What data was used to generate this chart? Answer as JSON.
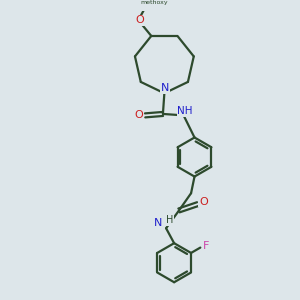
{
  "bg_color": "#dde6ea",
  "bond_color": "#2d4a2d",
  "n_color": "#2020cc",
  "o_color": "#cc2020",
  "f_color": "#cc44aa",
  "line_width": 1.6,
  "fig_width": 3.0,
  "fig_height": 3.0,
  "dpi": 100,
  "xlim": [
    0,
    10
  ],
  "ylim": [
    0,
    10
  ]
}
